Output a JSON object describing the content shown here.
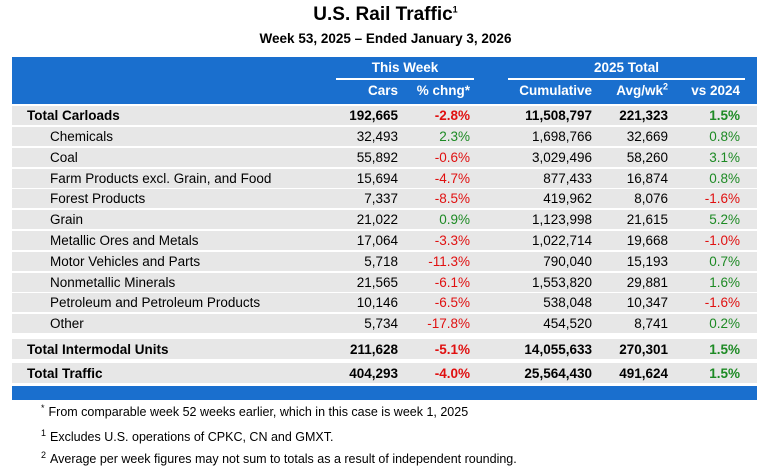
{
  "header": {
    "title": "U.S. Rail Traffic",
    "title_note": "1",
    "subtitle": "Week 53, 2025 – Ended January 3, 2026"
  },
  "table": {
    "groups": [
      "This Week",
      "2025 Total"
    ],
    "columns": [
      "Cars",
      "% chng*",
      "Cumulative",
      "Avg/wk",
      "vs 2024"
    ],
    "column_note": "2",
    "rows": [
      [
        "Total Carloads",
        "192,665",
        "-2.8%",
        "11,508,797",
        "221,323",
        "1.5%"
      ],
      [
        "Chemicals",
        "32,493",
        "2.3%",
        "1,698,766",
        "32,669",
        "0.8%"
      ],
      [
        "Coal",
        "55,892",
        "-0.6%",
        "3,029,496",
        "58,260",
        "3.1%"
      ],
      [
        "Farm Products excl. Grain, and Food",
        "15,694",
        "-4.7%",
        "877,433",
        "16,874",
        "0.8%"
      ],
      [
        "Forest Products",
        "7,337",
        "-8.5%",
        "419,962",
        "8,076",
        "-1.6%"
      ],
      [
        "Grain",
        "21,022",
        "0.9%",
        "1,123,998",
        "21,615",
        "5.2%"
      ],
      [
        "Metallic Ores and Metals",
        "17,064",
        "-3.3%",
        "1,022,714",
        "19,668",
        "-1.0%"
      ],
      [
        "Motor Vehicles and Parts",
        "5,718",
        "-11.3%",
        "790,040",
        "15,193",
        "0.7%"
      ],
      [
        "Nonmetallic Minerals",
        "21,565",
        "-6.1%",
        "1,553,820",
        "29,881",
        "1.6%"
      ],
      [
        "Petroleum and Petroleum Products",
        "10,146",
        "-6.5%",
        "538,048",
        "10,347",
        "-1.6%"
      ],
      [
        "Other",
        "5,734",
        "-17.8%",
        "454,520",
        "8,741",
        "0.2%"
      ],
      [
        "Total Intermodal Units",
        "211,628",
        "-5.1%",
        "14,055,633",
        "270,301",
        "1.5%"
      ],
      [
        "Total Traffic",
        "404,293",
        "-4.0%",
        "25,564,430",
        "491,624",
        "1.5%"
      ]
    ]
  },
  "footnotes": [
    {
      "mark": "*",
      "text": "From comparable week 52 weeks earlier, which in this case is week 1, 2025"
    },
    {
      "mark": "1",
      "text": "Excludes U.S. operations of CPKC, CN and GMXT."
    },
    {
      "mark": "2",
      "text": "Average per week figures may not sum to totals as a result of independent rounding."
    }
  ]
}
